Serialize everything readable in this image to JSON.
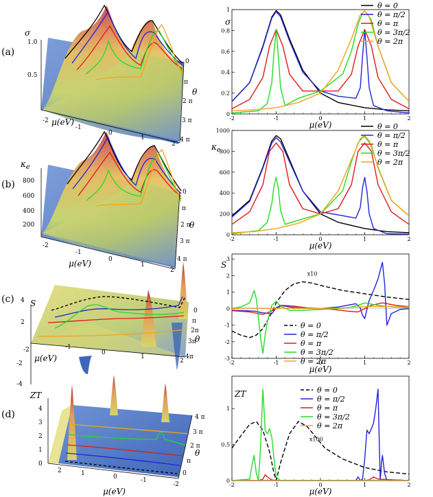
{
  "panel_labels": [
    "(a)",
    "(b)",
    "(c)",
    "(d)"
  ],
  "legend_entries": [
    "θ = 0",
    "θ = π/2",
    "θ = π",
    "θ = 3π/2",
    "θ = 2π"
  ],
  "series_colors": [
    "#000000",
    "#1f24d6",
    "#e01818",
    "#22dd22",
    "#f5a21b"
  ],
  "x_axis_label": "μ(eV)",
  "theta_axis_label": "θ",
  "annotations": {
    "x10": "x10",
    "x100": "x100"
  },
  "surface_ticks": {
    "a": {
      "z": [
        "1.0",
        "0.5"
      ],
      "x": [
        "-2",
        "-1",
        "0",
        "1",
        "2"
      ],
      "theta": [
        "0",
        "π",
        "2 π",
        "3 π",
        "4 π"
      ]
    },
    "b": {
      "z": [
        "800",
        "600",
        "400",
        "200"
      ],
      "x": [
        "-2",
        "-1",
        "0",
        "1",
        "2"
      ],
      "theta": [
        "0",
        "π",
        "2 π",
        "3 π",
        "4 π"
      ]
    },
    "c": {
      "z": [
        "4",
        "2",
        "-2",
        "-4"
      ],
      "x": [
        "-2",
        "-1",
        "0",
        "1",
        "2"
      ],
      "theta": [
        "0",
        "π",
        "2π",
        "3π",
        "4π"
      ]
    },
    "d": {
      "z": [
        "4",
        "3",
        "2",
        "1",
        "0"
      ],
      "x": [
        "2",
        "1",
        "0",
        "-1",
        "-2"
      ],
      "theta": [
        "4 π",
        "3 π",
        "2 π",
        "π",
        "0"
      ]
    }
  },
  "chart_data": [
    {
      "type": "line",
      "panel": "a",
      "ylabel": "σ",
      "xlabel": "μ(eV)",
      "xlim": [
        -2,
        2
      ],
      "ylim": [
        0,
        1
      ],
      "xticks": [
        "-2",
        "-1",
        "0",
        "1",
        "2"
      ],
      "yticks": [
        "0",
        "0.2",
        "0.4",
        "0.6",
        "0.8",
        "1"
      ],
      "legend": "top-right",
      "series": [
        {
          "name": "θ = 0",
          "color": "#000000",
          "x": [
            -2,
            -1.6,
            -1.3,
            -1.1,
            -1.0,
            -0.9,
            -0.7,
            -0.4,
            0,
            0.4,
            1,
            1.5,
            2
          ],
          "y": [
            0.12,
            0.3,
            0.65,
            0.93,
            0.99,
            0.95,
            0.72,
            0.42,
            0.2,
            0.11,
            0.06,
            0.04,
            0.03
          ]
        },
        {
          "name": "θ = π/2",
          "color": "#1f24d6",
          "x": [
            -2,
            -1.6,
            -1.3,
            -1.1,
            -1.0,
            -0.9,
            -0.7,
            -0.4,
            0,
            0.4,
            0.8,
            0.9,
            0.95,
            1.0,
            1.05,
            1.1,
            1.2,
            1.5,
            2
          ],
          "y": [
            0.12,
            0.3,
            0.64,
            0.92,
            0.98,
            0.93,
            0.7,
            0.4,
            0.22,
            0.17,
            0.15,
            0.25,
            0.55,
            0.81,
            0.55,
            0.25,
            0.08,
            0.03,
            0.01
          ]
        },
        {
          "name": "θ = π",
          "color": "#e01818",
          "x": [
            -2,
            -1.6,
            -1.3,
            -1.15,
            -1.0,
            -0.85,
            -0.7,
            -0.4,
            0,
            0.4,
            0.7,
            0.85,
            1.0,
            1.15,
            1.3,
            1.6,
            2
          ],
          "y": [
            0.05,
            0.14,
            0.35,
            0.65,
            0.81,
            0.65,
            0.38,
            0.22,
            0.22,
            0.22,
            0.38,
            0.65,
            0.81,
            0.65,
            0.35,
            0.14,
            0.05
          ]
        },
        {
          "name": "θ = 3π/2",
          "color": "#22dd22",
          "x": [
            -2,
            -1.4,
            -1.2,
            -1.1,
            -1.05,
            -1.0,
            -0.95,
            -0.9,
            -0.8,
            -0.5,
            0,
            0.5,
            0.7,
            0.85,
            0.95,
            1.0,
            1.15,
            1.3,
            1.6,
            2
          ],
          "y": [
            0.01,
            0.03,
            0.1,
            0.3,
            0.6,
            0.81,
            0.55,
            0.25,
            0.08,
            0.15,
            0.22,
            0.38,
            0.6,
            0.86,
            0.97,
            0.99,
            0.9,
            0.65,
            0.3,
            0.12
          ]
        },
        {
          "name": "θ = 2π",
          "color": "#f5a21b",
          "x": [
            -2,
            -1.5,
            -1,
            -0.5,
            0,
            0.4,
            0.7,
            0.9,
            1.0,
            1.1,
            1.3,
            1.6,
            2
          ],
          "y": [
            0.03,
            0.04,
            0.06,
            0.11,
            0.2,
            0.42,
            0.72,
            0.95,
            0.99,
            0.93,
            0.65,
            0.3,
            0.12
          ]
        }
      ]
    },
    {
      "type": "line",
      "panel": "b",
      "ylabel": "κe",
      "xlabel": "μ(eV)",
      "xlim": [
        -2,
        2
      ],
      "ylim": [
        0,
        1000
      ],
      "xticks": [
        "-2",
        "-1",
        "0",
        "1",
        "2"
      ],
      "yticks": [
        "0",
        "200",
        "400",
        "600",
        "800",
        "1000"
      ],
      "legend": "top-right",
      "series": [
        {
          "name": "θ = 0",
          "color": "#000000",
          "x": [
            -2,
            -1.6,
            -1.3,
            -1.1,
            -1.0,
            -0.9,
            -0.7,
            -0.4,
            0,
            0.4,
            1,
            1.5,
            2
          ],
          "y": [
            180,
            330,
            650,
            900,
            950,
            920,
            720,
            420,
            200,
            120,
            60,
            30,
            20
          ]
        },
        {
          "name": "θ = π/2",
          "color": "#1f24d6",
          "x": [
            -2,
            -1.6,
            -1.3,
            -1.1,
            -1.0,
            -0.9,
            -0.7,
            -0.4,
            0,
            0.4,
            0.8,
            0.9,
            0.95,
            1.0,
            1.05,
            1.1,
            1.2,
            1.5,
            2
          ],
          "y": [
            170,
            320,
            640,
            880,
            930,
            890,
            700,
            420,
            220,
            190,
            160,
            260,
            450,
            550,
            420,
            200,
            60,
            10,
            5
          ]
        },
        {
          "name": "θ = π",
          "color": "#e01818",
          "x": [
            -2,
            -1.6,
            -1.3,
            -1.15,
            -1.0,
            -0.85,
            -0.7,
            -0.4,
            0,
            0.4,
            0.7,
            0.85,
            1.0,
            1.15,
            1.3,
            1.6,
            2
          ],
          "y": [
            100,
            220,
            480,
            800,
            880,
            800,
            480,
            250,
            200,
            250,
            480,
            800,
            880,
            800,
            480,
            220,
            100
          ]
        },
        {
          "name": "θ = 3π/2",
          "color": "#22dd22",
          "x": [
            -2,
            -1.4,
            -1.2,
            -1.1,
            -1.05,
            -1.0,
            -0.95,
            -0.9,
            -0.8,
            -0.5,
            0,
            0.5,
            0.7,
            0.85,
            0.95,
            1.0,
            1.15,
            1.3,
            1.6,
            2
          ],
          "y": [
            10,
            40,
            120,
            300,
            470,
            550,
            440,
            230,
            100,
            140,
            200,
            420,
            700,
            880,
            930,
            940,
            860,
            640,
            330,
            180
          ]
        },
        {
          "name": "θ = 2π",
          "color": "#f5a21b",
          "x": [
            -2,
            -1.5,
            -1,
            -0.5,
            0,
            0.4,
            0.7,
            0.9,
            1.0,
            1.1,
            1.3,
            1.6,
            2
          ],
          "y": [
            20,
            30,
            60,
            110,
            200,
            420,
            720,
            920,
            950,
            900,
            650,
            330,
            180
          ]
        }
      ]
    },
    {
      "type": "line",
      "panel": "c",
      "ylabel": "S",
      "xlabel": "μ(eV)",
      "xlim": [
        -2,
        2
      ],
      "ylim": [
        -3,
        3.3
      ],
      "xticks": [
        "-2",
        "-1",
        "0",
        "1",
        "2"
      ],
      "yticks": [
        "-3",
        "-2",
        "-1",
        "0",
        "1",
        "2",
        "3"
      ],
      "legend": "bottom-right",
      "annotation": "x10",
      "series": [
        {
          "name": "θ = 0",
          "color": "#000000",
          "dash": true,
          "x": [
            -2,
            -1.8,
            -1.6,
            -1.45,
            -1.3,
            -1.15,
            -1.0,
            -0.8,
            -0.6,
            -0.4,
            -0.2,
            0,
            0.5,
            1,
            1.5,
            2
          ],
          "y": [
            -1.35,
            -1.6,
            -1.75,
            -1.6,
            -1.2,
            -0.5,
            0.35,
            1.1,
            1.5,
            1.62,
            1.55,
            1.4,
            1.1,
            0.9,
            0.7,
            0.55
          ]
        },
        {
          "name": "θ = π/2",
          "color": "#1f24d6",
          "x": [
            -2,
            -1.5,
            -1.3,
            -1.1,
            -1.0,
            -0.9,
            -0.7,
            -0.4,
            0,
            0.4,
            0.8,
            0.9,
            0.95,
            1.0,
            1.05,
            1.1,
            1.2,
            1.3,
            1.4,
            1.45,
            1.5,
            1.6,
            1.8,
            2
          ],
          "y": [
            -0.1,
            -0.15,
            -0.25,
            -0.3,
            0.05,
            0.2,
            0.1,
            0.02,
            0,
            0.1,
            0.3,
            0.05,
            -0.4,
            -0.6,
            -0.05,
            0.5,
            1.1,
            1.8,
            2.8,
            1.5,
            -1,
            -0.3,
            -0.05,
            0
          ]
        },
        {
          "name": "θ = π",
          "color": "#e01818",
          "x": [
            -2,
            -1.6,
            -1.3,
            -1.15,
            -1.0,
            -0.85,
            -0.6,
            -0.3,
            0,
            0.3,
            0.6,
            0.85,
            1.0,
            1.15,
            1.4,
            1.7,
            2
          ],
          "y": [
            -0.12,
            -0.2,
            -0.35,
            -0.2,
            0,
            0.2,
            0.15,
            0.05,
            0,
            -0.05,
            -0.15,
            -0.2,
            0,
            0.2,
            0.35,
            0.2,
            0.12
          ]
        },
        {
          "name": "θ = 3π/2",
          "color": "#22dd22",
          "x": [
            -2,
            -1.8,
            -1.6,
            -1.5,
            -1.45,
            -1.4,
            -1.35,
            -1.3,
            -1.25,
            -1.2,
            -1.1,
            -1.0,
            -0.9,
            -0.7,
            -0.4,
            0,
            0.4,
            0.7,
            0.9,
            1.0,
            1.3,
            1.6,
            2
          ],
          "y": [
            0.02,
            0.1,
            0.35,
            1.1,
            0.6,
            -0.6,
            -1.8,
            -2.7,
            -1.6,
            -0.8,
            0.2,
            0.45,
            0.15,
            -0.1,
            -0.1,
            -0.05,
            0,
            0.1,
            0.25,
            0.35,
            0.2,
            0.1,
            0.05
          ]
        },
        {
          "name": "θ = 2π",
          "color": "#f5a21b",
          "x": [
            -2,
            -1.5,
            -1,
            -0.5,
            0,
            0.5,
            1,
            1.5,
            2
          ],
          "y": [
            0.02,
            0.02,
            0.02,
            0.02,
            0,
            0.05,
            0.12,
            0.12,
            0.1
          ]
        }
      ]
    },
    {
      "type": "line",
      "panel": "d",
      "ylabel": "ZT",
      "xlabel": "μ(eV)",
      "xlim": [
        -2,
        2
      ],
      "ylim": [
        0,
        1.45
      ],
      "xticks": [
        "-2",
        "-1",
        "0",
        "1",
        "2"
      ],
      "yticks": [
        "0",
        "0.5",
        "1"
      ],
      "legend": "top-right",
      "annotation": "x100",
      "series": [
        {
          "name": "θ = 0",
          "color": "#000000",
          "dash": true,
          "x": [
            -2,
            -1.8,
            -1.6,
            -1.45,
            -1.3,
            -1.15,
            -1.05,
            -1.0,
            -0.9,
            -0.7,
            -0.5,
            -0.3,
            -0.1,
            0.1,
            0.5,
            1,
            1.5,
            2
          ],
          "y": [
            0.45,
            0.62,
            0.78,
            0.82,
            0.7,
            0.4,
            0.1,
            0.0,
            0.25,
            0.65,
            0.82,
            0.75,
            0.6,
            0.45,
            0.3,
            0.18,
            0.12,
            0.09
          ]
        },
        {
          "name": "θ = π/2",
          "color": "#1f24d6",
          "x": [
            -2,
            -0.9,
            0.8,
            0.85,
            0.9,
            0.95,
            1.0,
            1.05,
            1.1,
            1.15,
            1.2,
            1.25,
            1.3,
            1.33,
            1.35,
            1.38,
            1.4,
            1.45,
            1.5,
            1.6,
            2
          ],
          "y": [
            0,
            0,
            0,
            0.05,
            0.0,
            0.02,
            0.3,
            0.7,
            0.65,
            0.72,
            0.8,
            1.0,
            1.27,
            0.5,
            0.0,
            0.25,
            0.35,
            0.1,
            0.0,
            0,
            0
          ]
        },
        {
          "name": "θ = π",
          "color": "#e01818",
          "x": [
            -2,
            -1.4,
            -1.3,
            -1.25,
            -1.2,
            -1.15,
            -1.1,
            -1.0,
            0,
            1.0,
            1.1,
            1.2,
            1.3,
            2
          ],
          "y": [
            0,
            0,
            0.02,
            0.08,
            0.05,
            0.03,
            0.01,
            0,
            0,
            0,
            0.01,
            0.05,
            0.02,
            0
          ]
        },
        {
          "name": "θ = 3π/2",
          "color": "#22dd22",
          "x": [
            -2,
            -1.6,
            -1.55,
            -1.5,
            -1.45,
            -1.4,
            -1.35,
            -1.3,
            -1.25,
            -1.2,
            -1.15,
            -1.1,
            -1.05,
            -1.0,
            -0.9,
            0,
            2
          ],
          "y": [
            0,
            0.02,
            0.2,
            0.35,
            0.1,
            0.0,
            0.5,
            1.27,
            0.7,
            0.65,
            0.72,
            0.6,
            0.3,
            0.05,
            0,
            0,
            0
          ]
        },
        {
          "name": "θ = 2π",
          "color": "#f5a21b",
          "x": [
            -2,
            -1,
            0,
            1,
            2
          ],
          "y": [
            0,
            0,
            0,
            0,
            0
          ]
        }
      ]
    }
  ]
}
